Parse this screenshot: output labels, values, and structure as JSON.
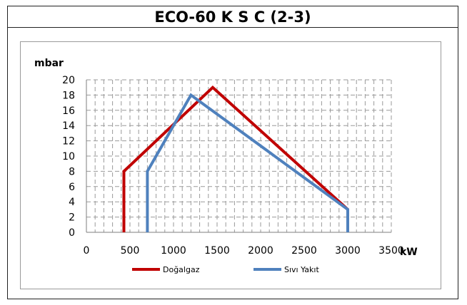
{
  "chart_data": {
    "type": "line",
    "title": "ECO-60 K S C (2-3)",
    "ylabel": "mbar",
    "xlabel": "kW",
    "xlim": [
      0,
      3500
    ],
    "ylim": [
      0,
      20
    ],
    "x_ticks": [
      0,
      500,
      1000,
      1500,
      2000,
      2500,
      3000,
      3500
    ],
    "y_ticks": [
      0,
      2,
      4,
      6,
      8,
      10,
      12,
      14,
      16,
      18,
      20
    ],
    "x_tick_labels": [
      "0",
      "500",
      "1000",
      "1500",
      "2000",
      "2500",
      "3000",
      "3500"
    ],
    "y_tick_labels": [
      "0",
      "2",
      "4",
      "6",
      "8",
      "10",
      "12",
      "14",
      "16",
      "18",
      "20"
    ],
    "grid": true,
    "legend_position": "bottom",
    "series": [
      {
        "name": "Doğalgaz",
        "color": "#c00000",
        "points": [
          [
            430,
            0
          ],
          [
            430,
            8
          ],
          [
            1450,
            19
          ],
          [
            3000,
            3
          ],
          [
            3000,
            2.5
          ]
        ]
      },
      {
        "name": "Sıvı Yakıt",
        "color": "#4f81bd",
        "points": [
          [
            700,
            0
          ],
          [
            700,
            8
          ],
          [
            1200,
            18
          ],
          [
            3000,
            3
          ],
          [
            3000,
            0
          ]
        ]
      }
    ]
  }
}
